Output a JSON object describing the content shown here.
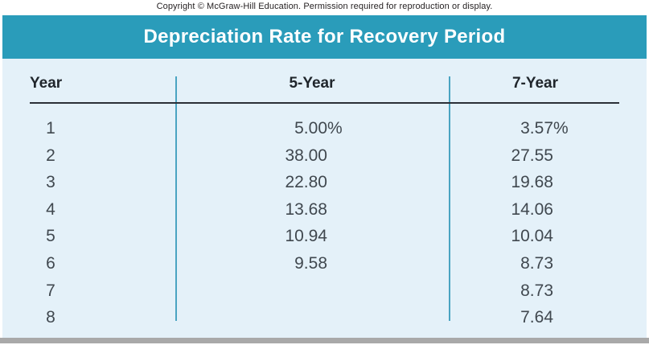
{
  "page": {
    "copyright": "Copyright © McGraw-Hill Education. Permission required for reproduction or display."
  },
  "table": {
    "title": "Depreciation Rate for Recovery Period",
    "columns": {
      "year": "Year",
      "five": "5-Year",
      "seven": "7-Year"
    },
    "rows": [
      {
        "year": "1",
        "five": "5.00",
        "five_unit": "%",
        "seven": "3.57",
        "seven_unit": "%"
      },
      {
        "year": "2",
        "five": "38.00",
        "five_unit": "",
        "seven": "27.55",
        "seven_unit": ""
      },
      {
        "year": "3",
        "five": "22.80",
        "five_unit": "",
        "seven": "19.68",
        "seven_unit": ""
      },
      {
        "year": "4",
        "five": "13.68",
        "five_unit": "",
        "seven": "14.06",
        "seven_unit": ""
      },
      {
        "year": "5",
        "five": "10.94",
        "five_unit": "",
        "seven": "10.04",
        "seven_unit": ""
      },
      {
        "year": "6",
        "five": "9.58",
        "five_unit": "",
        "seven": "8.73",
        "seven_unit": ""
      },
      {
        "year": "7",
        "five": "",
        "five_unit": "",
        "seven": "8.73",
        "seven_unit": ""
      },
      {
        "year": "8",
        "five": "",
        "five_unit": "",
        "seven": "7.64",
        "seven_unit": ""
      }
    ]
  },
  "chart_data": {
    "type": "table",
    "title": "Depreciation Rate for Recovery Period",
    "columns": [
      "Year",
      "5-Year",
      "7-Year"
    ],
    "rows": [
      [
        "1",
        "5.00%",
        "3.57%"
      ],
      [
        "2",
        "38.00",
        "27.55"
      ],
      [
        "3",
        "22.80",
        "19.68"
      ],
      [
        "4",
        "13.68",
        "14.06"
      ],
      [
        "5",
        "10.94",
        "10.04"
      ],
      [
        "6",
        "9.58",
        "8.73"
      ],
      [
        "7",
        "",
        "8.73"
      ],
      [
        "8",
        "",
        "7.64"
      ]
    ]
  },
  "colors": {
    "header_teal": "#2a9cba",
    "body_light_blue": "#e4f1f9",
    "column_rule_teal": "#4aa4c2",
    "header_rule_dark": "#2b3038",
    "bottom_bar_gray": "#a9a9a9",
    "text_dark": "#20262c",
    "number_text": "#40484f"
  }
}
